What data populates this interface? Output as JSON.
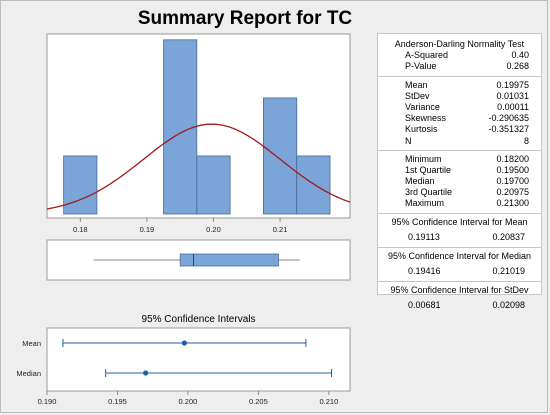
{
  "report": {
    "title": "Summary Report for TC"
  },
  "stats": {
    "ad_title": "Anderson-Darling Normality Test",
    "ad_rows": [
      {
        "label": "A-Squared",
        "value": "0.40"
      },
      {
        "label": "P-Value",
        "value": "0.268"
      }
    ],
    "desc_rows": [
      {
        "label": "Mean",
        "value": "0.19975"
      },
      {
        "label": "StDev",
        "value": "0.01031"
      },
      {
        "label": "Variance",
        "value": "0.00011"
      },
      {
        "label": "Skewness",
        "value": "-0.290635"
      },
      {
        "label": "Kurtosis",
        "value": "-0.351327"
      },
      {
        "label": "N",
        "value": "8"
      }
    ],
    "quart_rows": [
      {
        "label": "Minimum",
        "value": "0.18200"
      },
      {
        "label": "1st Quartile",
        "value": "0.19500"
      },
      {
        "label": "Median",
        "value": "0.19700"
      },
      {
        "label": "3rd Quartile",
        "value": "0.20975"
      },
      {
        "label": "Maximum",
        "value": "0.21300"
      }
    ],
    "ci_mean_title": "95% Confidence Interval for Mean",
    "ci_mean": {
      "lo": "0.19113",
      "hi": "0.20837"
    },
    "ci_median_title": "95% Confidence Interval for Median",
    "ci_median": {
      "lo": "0.19416",
      "hi": "0.21019"
    },
    "ci_stdev_title": "95% Confidence Interval for StDev",
    "ci_stdev": {
      "lo": "0.00681",
      "hi": "0.02098"
    }
  },
  "chart_data": [
    {
      "type": "bar",
      "subtype": "histogram",
      "bin_width": 0.005,
      "bins": [
        {
          "start": 0.1775,
          "end": 0.1825,
          "count": 1
        },
        {
          "start": 0.1825,
          "end": 0.1875,
          "count": 0
        },
        {
          "start": 0.1875,
          "end": 0.1925,
          "count": 0
        },
        {
          "start": 0.1925,
          "end": 0.1975,
          "count": 3
        },
        {
          "start": 0.1975,
          "end": 0.2025,
          "count": 1
        },
        {
          "start": 0.2025,
          "end": 0.2075,
          "count": 0
        },
        {
          "start": 0.2075,
          "end": 0.2125,
          "count": 2
        },
        {
          "start": 0.2125,
          "end": 0.2175,
          "count": 1
        }
      ],
      "normal_curve": {
        "mean": 0.19975,
        "stdev": 0.01031
      },
      "x_ticks": [
        "0.18",
        "0.19",
        "0.20",
        "0.21"
      ],
      "x_tick_values": [
        0.18,
        0.19,
        0.2,
        0.21
      ],
      "xlim": [
        0.175,
        0.2205
      ],
      "ylim": [
        0,
        3.1
      ],
      "bar_color": "#7ba4d9",
      "curve_color": "#a31a1a"
    },
    {
      "type": "boxplot",
      "min": 0.182,
      "q1": 0.195,
      "median": 0.197,
      "q3": 0.20975,
      "max": 0.213,
      "xlim": [
        0.175,
        0.2205
      ]
    },
    {
      "type": "scatter",
      "title": "95% Confidence Intervals",
      "rows": [
        {
          "label": "Mean",
          "point": 0.19975,
          "lo": 0.19113,
          "hi": 0.20837
        },
        {
          "label": "Median",
          "point": 0.197,
          "lo": 0.19416,
          "hi": 0.21019
        }
      ],
      "x_ticks": [
        "0.190",
        "0.195",
        "0.200",
        "0.205",
        "0.210"
      ],
      "x_tick_values": [
        0.19,
        0.195,
        0.2,
        0.205,
        0.21
      ],
      "xlim": [
        0.19,
        0.2115
      ],
      "color": "#1f5fa8"
    }
  ]
}
